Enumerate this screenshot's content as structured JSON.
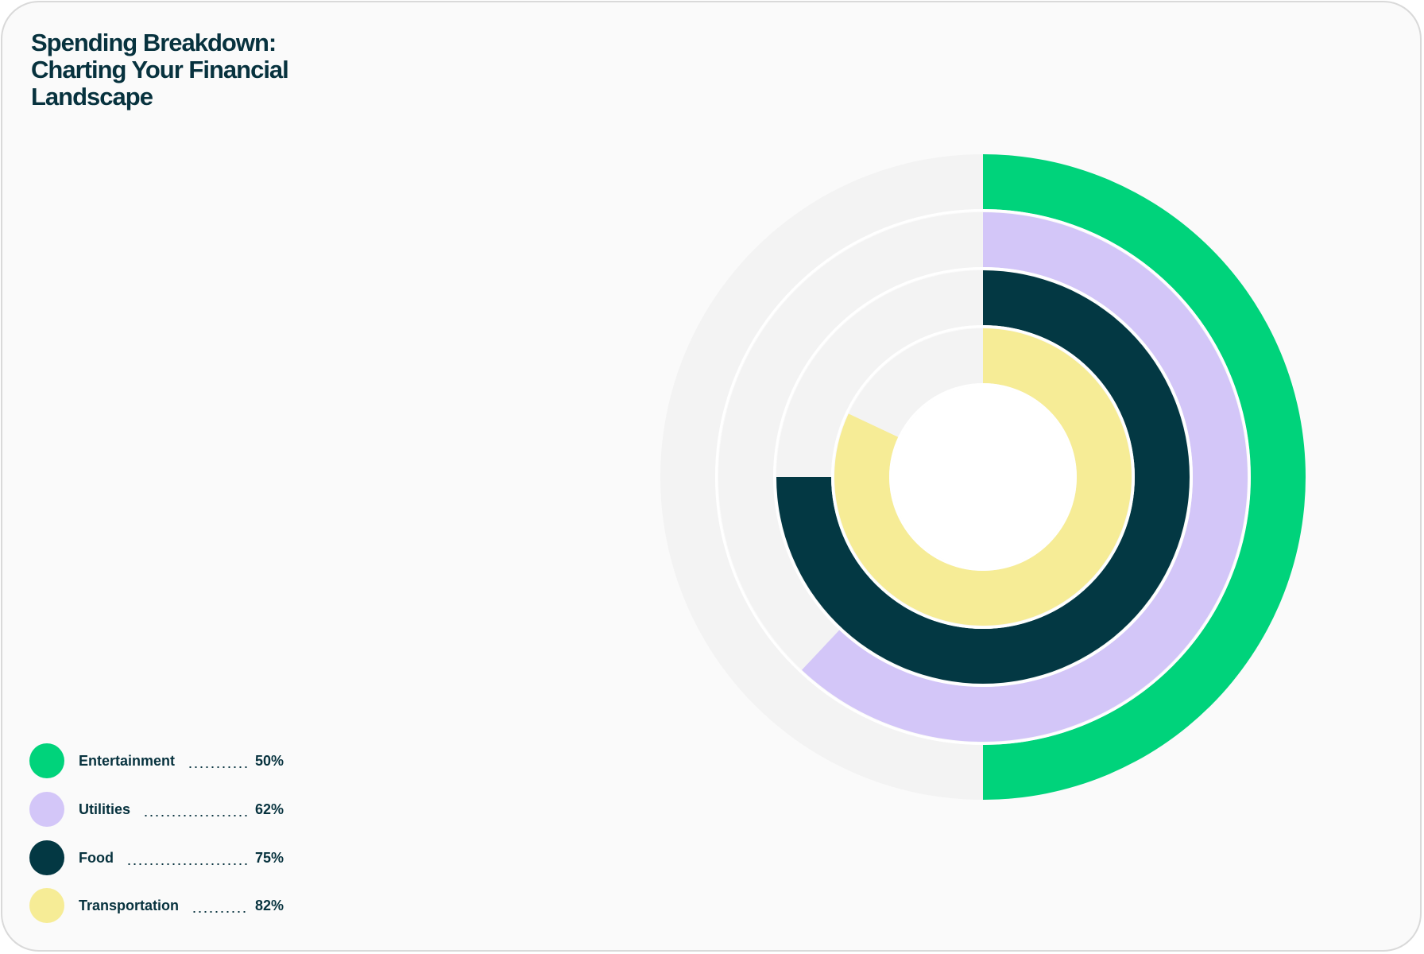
{
  "title": "Spending Breakdown: Charting Your Financial Landscape",
  "colors": {
    "entertainment": "#00d37b",
    "utilities": "#d3c6f8",
    "food": "#033843",
    "transportation": "#f6ec96",
    "track": "#f3f3f3",
    "text": "#07323e",
    "background": "#fafafa"
  },
  "chart_data": {
    "type": "radial-bar",
    "title": "Spending Breakdown: Charting Your Financial Landscape",
    "categories": [
      "Entertainment",
      "Utilities",
      "Food",
      "Transportation"
    ],
    "values": [
      50,
      62,
      75,
      82
    ],
    "unit": "%",
    "max": 100,
    "legend_position": "bottom-left",
    "series": [
      {
        "name": "Entertainment",
        "value": 50,
        "label": "50%",
        "color": "#00d37b"
      },
      {
        "name": "Utilities",
        "value": 62,
        "label": "62%",
        "color": "#d3c6f8"
      },
      {
        "name": "Food",
        "value": 75,
        "label": "75%",
        "color": "#033843"
      },
      {
        "name": "Transportation",
        "value": 82,
        "label": "82%",
        "color": "#f6ec96"
      }
    ]
  }
}
